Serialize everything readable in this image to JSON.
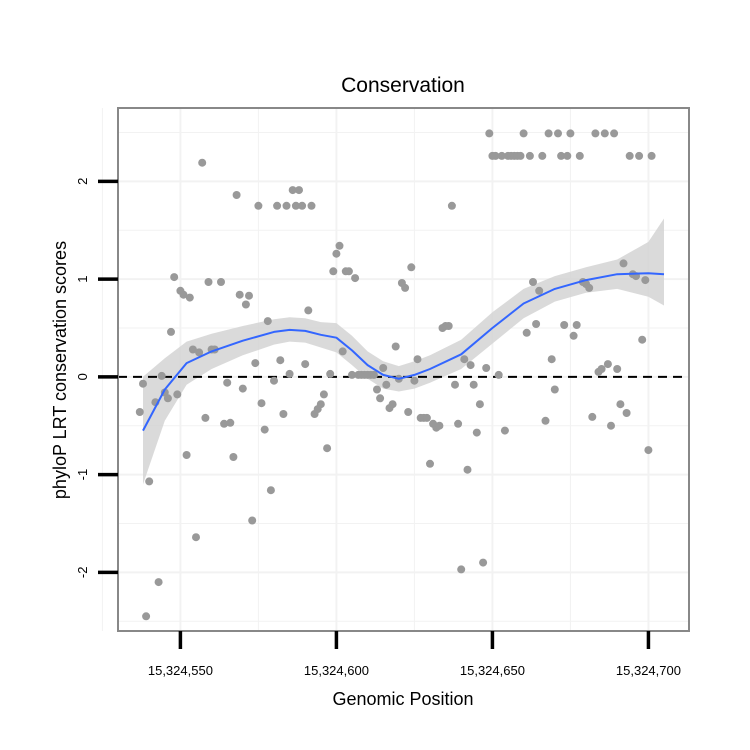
{
  "chart_data": {
    "type": "scatter",
    "title": "Conservation",
    "xlabel": "Genomic Position",
    "ylabel": "phyloP LRT conservation scores",
    "xlim": [
      15324530,
      15324713
    ],
    "ylim": [
      -2.6,
      2.75
    ],
    "x_ticks": [
      15324550,
      15324600,
      15324650,
      15324700
    ],
    "x_tick_labels": [
      "15,324,550",
      "15,324,600",
      "15,324,650",
      "15,324,700"
    ],
    "y_ticks": [
      -2,
      -1,
      0,
      1,
      2
    ],
    "y_tick_labels": [
      "-2",
      "-1",
      "0",
      "1",
      "2"
    ],
    "grid": true,
    "reference_line": {
      "y": 0,
      "style": "dashed"
    },
    "colors": {
      "points": "#999999",
      "smooth": "#3366FF",
      "band": "#D3D3D3",
      "panel_border": "#888888",
      "grid": "#F2F2F2"
    },
    "points": [
      [
        15324537,
        -0.36
      ],
      [
        15324538,
        -0.07
      ],
      [
        15324539,
        -2.45
      ],
      [
        15324540,
        -1.07
      ],
      [
        15324542,
        -0.26
      ],
      [
        15324543,
        -2.1
      ],
      [
        15324544,
        0.01
      ],
      [
        15324545,
        -0.16
      ],
      [
        15324546,
        -0.22
      ],
      [
        15324547,
        0.46
      ],
      [
        15324548,
        1.02
      ],
      [
        15324549,
        -0.18
      ],
      [
        15324550,
        0.88
      ],
      [
        15324551,
        0.84
      ],
      [
        15324552,
        -0.8
      ],
      [
        15324553,
        0.81
      ],
      [
        15324554,
        0.28
      ],
      [
        15324555,
        -1.64
      ],
      [
        15324556,
        0.25
      ],
      [
        15324557,
        2.19
      ],
      [
        15324558,
        -0.42
      ],
      [
        15324559,
        0.97
      ],
      [
        15324560,
        0.28
      ],
      [
        15324561,
        0.28
      ],
      [
        15324563,
        0.97
      ],
      [
        15324564,
        -0.48
      ],
      [
        15324565,
        -0.06
      ],
      [
        15324566,
        -0.47
      ],
      [
        15324567,
        -0.82
      ],
      [
        15324568,
        1.86
      ],
      [
        15324569,
        0.84
      ],
      [
        15324570,
        -0.12
      ],
      [
        15324571,
        0.74
      ],
      [
        15324572,
        0.83
      ],
      [
        15324573,
        -1.47
      ],
      [
        15324574,
        0.14
      ],
      [
        15324575,
        1.75
      ],
      [
        15324576,
        -0.27
      ],
      [
        15324577,
        -0.54
      ],
      [
        15324578,
        0.57
      ],
      [
        15324579,
        -1.16
      ],
      [
        15324580,
        -0.04
      ],
      [
        15324581,
        1.75
      ],
      [
        15324582,
        0.17
      ],
      [
        15324583,
        -0.38
      ],
      [
        15324584,
        1.75
      ],
      [
        15324585,
        0.03
      ],
      [
        15324586,
        1.91
      ],
      [
        15324587,
        1.75
      ],
      [
        15324588,
        1.91
      ],
      [
        15324589,
        1.75
      ],
      [
        15324590,
        0.13
      ],
      [
        15324591,
        0.68
      ],
      [
        15324592,
        1.75
      ],
      [
        15324593,
        -0.38
      ],
      [
        15324594,
        -0.33
      ],
      [
        15324595,
        -0.28
      ],
      [
        15324596,
        -0.18
      ],
      [
        15324597,
        -0.73
      ],
      [
        15324598,
        0.03
      ],
      [
        15324599,
        1.08
      ],
      [
        15324600,
        1.26
      ],
      [
        15324601,
        1.34
      ],
      [
        15324602,
        0.26
      ],
      [
        15324603,
        1.08
      ],
      [
        15324604,
        1.08
      ],
      [
        15324605,
        0.02
      ],
      [
        15324606,
        1.01
      ],
      [
        15324607,
        0.02
      ],
      [
        15324608,
        0.02
      ],
      [
        15324609,
        0.02
      ],
      [
        15324610,
        0.02
      ],
      [
        15324611,
        0.02
      ],
      [
        15324612,
        0.02
      ],
      [
        15324613,
        -0.13
      ],
      [
        15324614,
        -0.22
      ],
      [
        15324615,
        0.09
      ],
      [
        15324616,
        -0.08
      ],
      [
        15324617,
        -0.32
      ],
      [
        15324618,
        -0.28
      ],
      [
        15324619,
        0.31
      ],
      [
        15324620,
        -0.02
      ],
      [
        15324621,
        0.96
      ],
      [
        15324622,
        0.91
      ],
      [
        15324623,
        -0.36
      ],
      [
        15324624,
        1.12
      ],
      [
        15324625,
        -0.04
      ],
      [
        15324626,
        0.18
      ],
      [
        15324627,
        -0.42
      ],
      [
        15324628,
        -0.42
      ],
      [
        15324629,
        -0.42
      ],
      [
        15324630,
        -0.89
      ],
      [
        15324631,
        -0.48
      ],
      [
        15324632,
        -0.52
      ],
      [
        15324633,
        -0.5
      ],
      [
        15324634,
        0.5
      ],
      [
        15324635,
        0.52
      ],
      [
        15324636,
        0.52
      ],
      [
        15324637,
        1.75
      ],
      [
        15324638,
        -0.08
      ],
      [
        15324639,
        -0.48
      ],
      [
        15324640,
        -1.97
      ],
      [
        15324641,
        0.18
      ],
      [
        15324642,
        -0.95
      ],
      [
        15324643,
        0.12
      ],
      [
        15324644,
        -0.08
      ],
      [
        15324645,
        -0.57
      ],
      [
        15324646,
        -0.28
      ],
      [
        15324647,
        -1.9
      ],
      [
        15324648,
        0.09
      ],
      [
        15324649,
        2.49
      ],
      [
        15324650,
        2.26
      ],
      [
        15324651,
        2.26
      ],
      [
        15324652,
        0.02
      ],
      [
        15324653,
        2.26
      ],
      [
        15324654,
        -0.55
      ],
      [
        15324655,
        2.26
      ],
      [
        15324656,
        2.26
      ],
      [
        15324657,
        2.26
      ],
      [
        15324658,
        2.26
      ],
      [
        15324659,
        2.26
      ],
      [
        15324660,
        2.49
      ],
      [
        15324661,
        0.45
      ],
      [
        15324662,
        2.26
      ],
      [
        15324663,
        0.97
      ],
      [
        15324664,
        0.54
      ],
      [
        15324665,
        0.88
      ],
      [
        15324666,
        2.26
      ],
      [
        15324667,
        -0.45
      ],
      [
        15324668,
        2.49
      ],
      [
        15324669,
        0.18
      ],
      [
        15324670,
        -0.13
      ],
      [
        15324671,
        2.49
      ],
      [
        15324672,
        2.26
      ],
      [
        15324673,
        0.53
      ],
      [
        15324674,
        2.26
      ],
      [
        15324675,
        2.49
      ],
      [
        15324676,
        0.42
      ],
      [
        15324677,
        0.53
      ],
      [
        15324678,
        2.26
      ],
      [
        15324679,
        0.97
      ],
      [
        15324680,
        0.95
      ],
      [
        15324681,
        0.91
      ],
      [
        15324682,
        -0.41
      ],
      [
        15324683,
        2.49
      ],
      [
        15324684,
        0.05
      ],
      [
        15324685,
        0.08
      ],
      [
        15324686,
        2.49
      ],
      [
        15324687,
        0.13
      ],
      [
        15324688,
        -0.5
      ],
      [
        15324689,
        2.49
      ],
      [
        15324690,
        0.08
      ],
      [
        15324691,
        -0.28
      ],
      [
        15324692,
        1.16
      ],
      [
        15324693,
        -0.37
      ],
      [
        15324694,
        2.26
      ],
      [
        15324695,
        1.05
      ],
      [
        15324696,
        1.03
      ],
      [
        15324697,
        2.26
      ],
      [
        15324698,
        0.38
      ],
      [
        15324699,
        0.99
      ],
      [
        15324700,
        -0.75
      ],
      [
        15324701,
        2.26
      ]
    ],
    "smooth": {
      "x": [
        15324538,
        15324545,
        15324552,
        15324560,
        15324570,
        15324580,
        15324585,
        15324590,
        15324595,
        15324600,
        15324605,
        15324610,
        15324615,
        15324620,
        15324625,
        15324630,
        15324640,
        15324650,
        15324660,
        15324670,
        15324680,
        15324690,
        15324700,
        15324705
      ],
      "y": [
        -0.55,
        -0.13,
        0.14,
        0.26,
        0.37,
        0.46,
        0.48,
        0.47,
        0.43,
        0.4,
        0.27,
        0.12,
        0.02,
        -0.02,
        0.02,
        0.08,
        0.23,
        0.5,
        0.75,
        0.9,
        0.99,
        1.05,
        1.06,
        1.05
      ],
      "lower": [
        -1.1,
        -0.45,
        -0.08,
        0.08,
        0.22,
        0.33,
        0.36,
        0.35,
        0.3,
        0.25,
        0.12,
        -0.02,
        -0.12,
        -0.15,
        -0.12,
        -0.06,
        0.08,
        0.34,
        0.6,
        0.77,
        0.86,
        0.9,
        0.82,
        0.73
      ],
      "upper": [
        0.0,
        0.19,
        0.36,
        0.44,
        0.52,
        0.59,
        0.61,
        0.6,
        0.56,
        0.55,
        0.42,
        0.26,
        0.16,
        0.11,
        0.16,
        0.22,
        0.38,
        0.66,
        0.9,
        1.03,
        1.12,
        1.2,
        1.38,
        1.62
      ]
    }
  }
}
